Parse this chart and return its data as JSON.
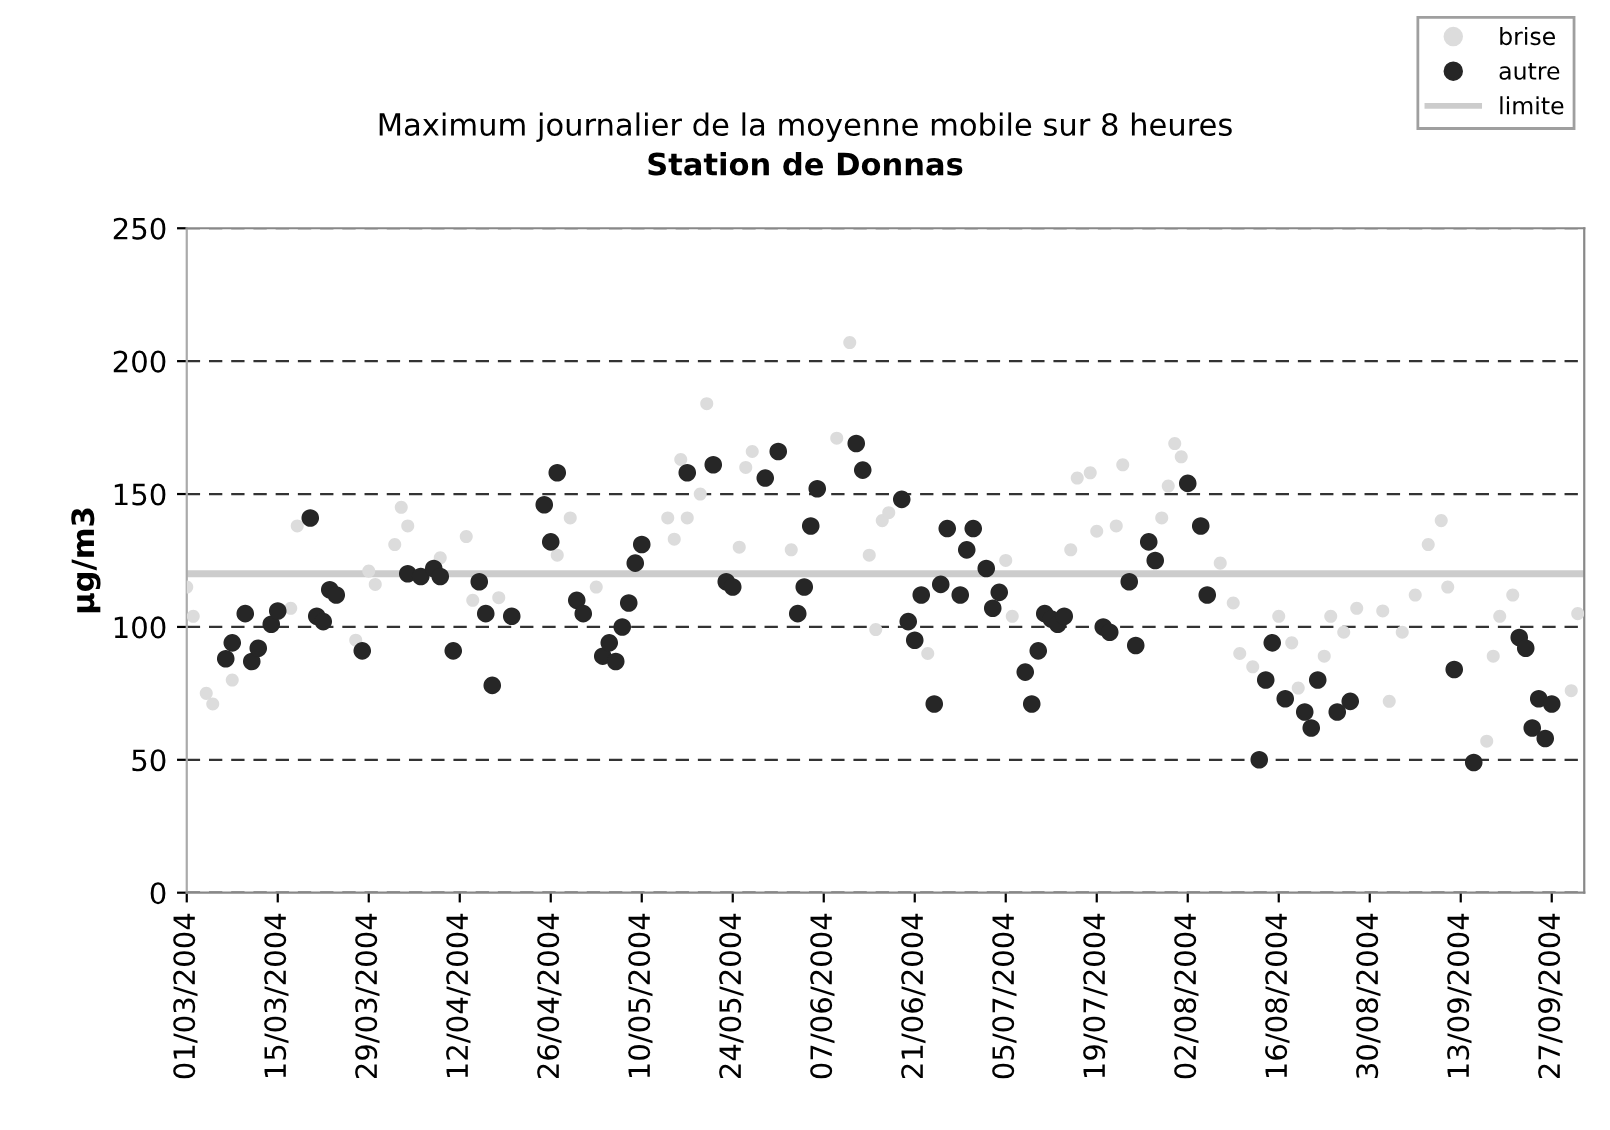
{
  "chart_data": {
    "type": "scatter",
    "title": "Maximum journalier de la moyenne mobile sur 8 heures",
    "subtitle": "Station de Donnas",
    "ylabel": "µg/m3",
    "series": [
      {
        "name": "brise",
        "color": "#dcdcdc",
        "marker": "circle",
        "x": [
          "2004-03-01",
          "2004-03-02",
          "2004-03-04",
          "2004-03-05",
          "2004-03-08",
          "2004-03-17",
          "2004-03-18",
          "2004-03-27",
          "2004-03-29",
          "2004-03-30",
          "2004-04-02",
          "2004-04-03",
          "2004-04-04",
          "2004-04-09",
          "2004-04-13",
          "2004-04-14",
          "2004-04-18",
          "2004-04-27",
          "2004-04-29",
          "2004-05-03",
          "2004-05-14",
          "2004-05-15",
          "2004-05-16",
          "2004-05-17",
          "2004-05-19",
          "2004-05-20",
          "2004-05-25",
          "2004-05-26",
          "2004-05-27",
          "2004-06-02",
          "2004-06-09",
          "2004-06-11",
          "2004-06-14",
          "2004-06-15",
          "2004-06-16",
          "2004-06-17",
          "2004-06-23",
          "2004-07-05",
          "2004-07-06",
          "2004-07-15",
          "2004-07-16",
          "2004-07-18",
          "2004-07-19",
          "2004-07-22",
          "2004-07-23",
          "2004-07-29",
          "2004-07-30",
          "2004-07-31",
          "2004-08-01",
          "2004-08-07",
          "2004-08-09",
          "2004-08-10",
          "2004-08-12",
          "2004-08-16",
          "2004-08-18",
          "2004-08-19",
          "2004-08-23",
          "2004-08-24",
          "2004-08-26",
          "2004-08-28",
          "2004-09-01",
          "2004-09-02",
          "2004-09-04",
          "2004-09-06",
          "2004-09-08",
          "2004-09-10",
          "2004-09-11",
          "2004-09-17",
          "2004-09-18",
          "2004-09-19",
          "2004-09-21",
          "2004-09-30",
          "2004-10-01"
        ],
        "values": [
          115,
          104,
          75,
          71,
          80,
          107,
          138,
          95,
          121,
          116,
          131,
          145,
          138,
          126,
          134,
          110,
          111,
          127,
          141,
          115,
          141,
          133,
          163,
          141,
          150,
          184,
          130,
          160,
          166,
          129,
          171,
          207,
          127,
          99,
          140,
          143,
          90,
          125,
          104,
          129,
          156,
          158,
          136,
          138,
          161,
          141,
          153,
          169,
          164,
          124,
          109,
          90,
          85,
          104,
          94,
          77,
          89,
          104,
          98,
          107,
          106,
          72,
          98,
          112,
          131,
          140,
          115,
          57,
          89,
          104,
          112,
          76,
          105
        ]
      },
      {
        "name": "autre",
        "color": "#262626",
        "marker": "circle",
        "x": [
          "2004-03-07",
          "2004-03-08",
          "2004-03-10",
          "2004-03-11",
          "2004-03-12",
          "2004-03-14",
          "2004-03-15",
          "2004-03-20",
          "2004-03-21",
          "2004-03-22",
          "2004-03-23",
          "2004-03-24",
          "2004-03-28",
          "2004-04-04",
          "2004-04-06",
          "2004-04-08",
          "2004-04-09",
          "2004-04-11",
          "2004-04-15",
          "2004-04-16",
          "2004-04-17",
          "2004-04-20",
          "2004-04-25",
          "2004-04-26",
          "2004-04-27",
          "2004-04-30",
          "2004-05-01",
          "2004-05-04",
          "2004-05-05",
          "2004-05-06",
          "2004-05-07",
          "2004-05-08",
          "2004-05-09",
          "2004-05-10",
          "2004-05-17",
          "2004-05-21",
          "2004-05-23",
          "2004-05-24",
          "2004-05-29",
          "2004-05-31",
          "2004-06-03",
          "2004-06-04",
          "2004-06-05",
          "2004-06-06",
          "2004-06-12",
          "2004-06-13",
          "2004-06-19",
          "2004-06-20",
          "2004-06-21",
          "2004-06-22",
          "2004-06-24",
          "2004-06-25",
          "2004-06-26",
          "2004-06-28",
          "2004-06-29",
          "2004-06-30",
          "2004-07-02",
          "2004-07-03",
          "2004-07-04",
          "2004-07-08",
          "2004-07-09",
          "2004-07-10",
          "2004-07-11",
          "2004-07-12",
          "2004-07-13",
          "2004-07-14",
          "2004-07-20",
          "2004-07-21",
          "2004-07-24",
          "2004-07-25",
          "2004-07-27",
          "2004-07-28",
          "2004-08-02",
          "2004-08-04",
          "2004-08-05",
          "2004-08-13",
          "2004-08-14",
          "2004-08-15",
          "2004-08-17",
          "2004-08-20",
          "2004-08-21",
          "2004-08-22",
          "2004-08-25",
          "2004-08-27",
          "2004-09-12",
          "2004-09-15",
          "2004-09-22",
          "2004-09-23",
          "2004-09-24",
          "2004-09-25",
          "2004-09-26",
          "2004-09-27"
        ],
        "values": [
          88,
          94,
          105,
          87,
          92,
          101,
          106,
          141,
          104,
          102,
          114,
          112,
          91,
          120,
          119,
          122,
          119,
          91,
          117,
          105,
          78,
          104,
          146,
          132,
          158,
          110,
          105,
          89,
          94,
          87,
          100,
          109,
          124,
          131,
          158,
          161,
          117,
          115,
          156,
          166,
          105,
          115,
          138,
          152,
          169,
          159,
          148,
          102,
          95,
          112,
          71,
          116,
          137,
          112,
          129,
          137,
          122,
          107,
          113,
          83,
          71,
          91,
          105,
          103,
          101,
          104,
          100,
          98,
          117,
          93,
          132,
          125,
          154,
          138,
          112,
          50,
          80,
          94,
          73,
          68,
          62,
          80,
          68,
          72,
          84,
          49,
          96,
          92,
          62,
          73,
          58,
          71
        ]
      }
    ],
    "ref_lines": [
      {
        "axis": "y",
        "value": 120,
        "label": "limite",
        "color": "#cccccc",
        "line_style": "solid"
      }
    ],
    "xlim": [
      "2004-03-01",
      "2004-10-02"
    ],
    "xticks": [
      {
        "value": "2004-03-01",
        "label": "01/03/2004"
      },
      {
        "value": "2004-03-15",
        "label": "15/03/2004"
      },
      {
        "value": "2004-03-29",
        "label": "29/03/2004"
      },
      {
        "value": "2004-04-12",
        "label": "12/04/2004"
      },
      {
        "value": "2004-04-26",
        "label": "26/04/2004"
      },
      {
        "value": "2004-05-10",
        "label": "10/05/2004"
      },
      {
        "value": "2004-05-24",
        "label": "24/05/2004"
      },
      {
        "value": "2004-06-07",
        "label": "07/06/2004"
      },
      {
        "value": "2004-06-21",
        "label": "21/06/2004"
      },
      {
        "value": "2004-07-05",
        "label": "05/07/2004"
      },
      {
        "value": "2004-07-19",
        "label": "19/07/2004"
      },
      {
        "value": "2004-08-02",
        "label": "02/08/2004"
      },
      {
        "value": "2004-08-16",
        "label": "16/08/2004"
      },
      {
        "value": "2004-08-30",
        "label": "30/08/2004"
      },
      {
        "value": "2004-09-13",
        "label": "13/09/2004"
      },
      {
        "value": "2004-09-27",
        "label": "27/09/2004"
      }
    ],
    "ylim": [
      0,
      250
    ],
    "yticks": [
      0,
      50,
      100,
      150,
      200,
      250
    ],
    "grid": "y",
    "legend": "top right"
  }
}
